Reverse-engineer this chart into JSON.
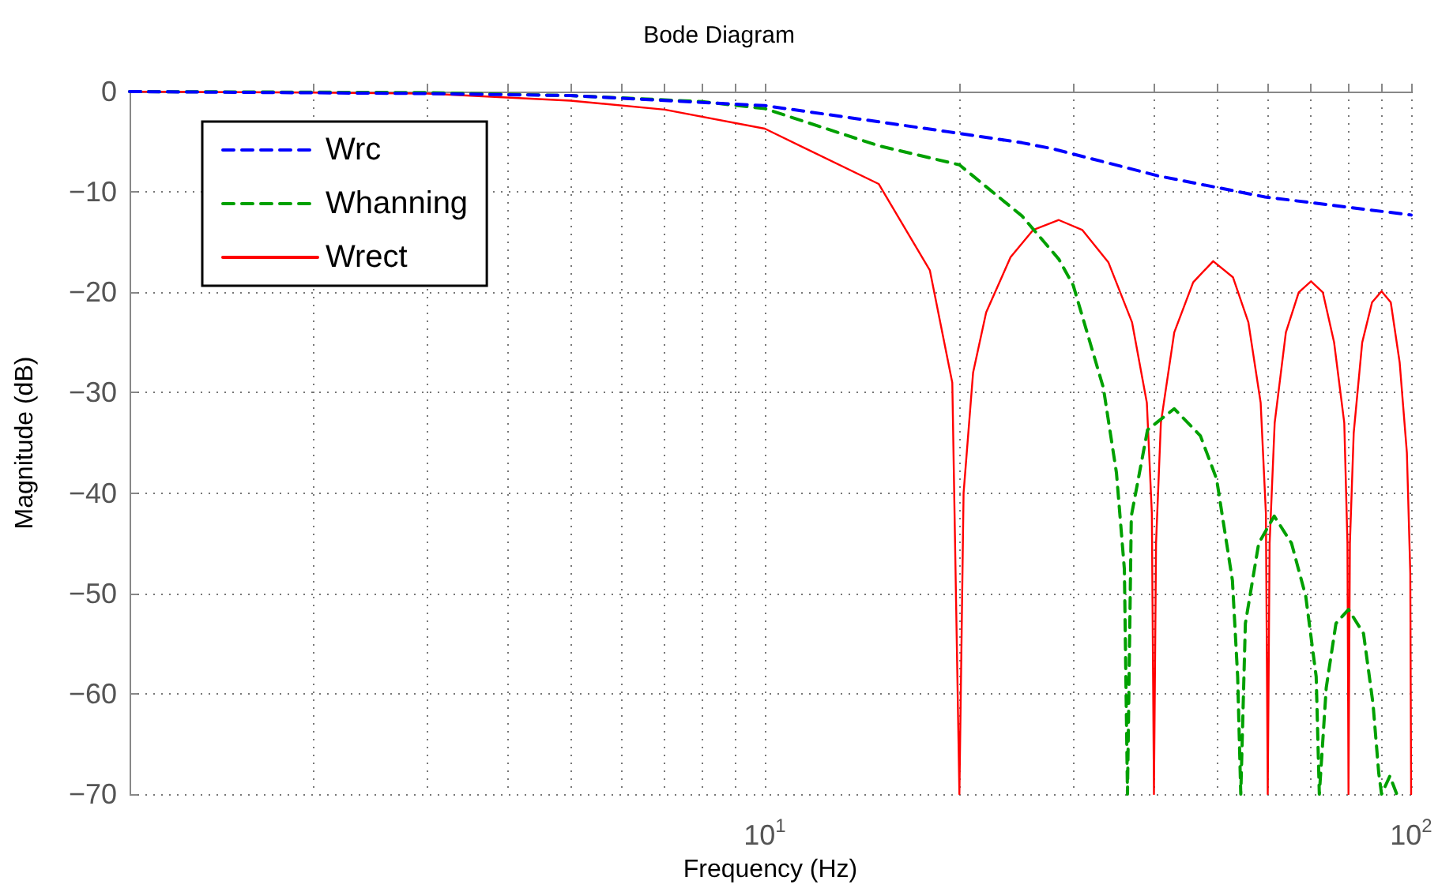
{
  "chart_data": {
    "type": "line",
    "title": "Bode Diagram",
    "xlabel": "Frequency (Hz)",
    "ylabel": "Magnitude (dB)",
    "log": "x",
    "xlim": [
      1.04,
      100
    ],
    "ylim": [
      -70,
      0
    ],
    "xticks": [
      {
        "value": 2,
        "label": null
      },
      {
        "value": 3,
        "label": null
      },
      {
        "value": 4,
        "label": null
      },
      {
        "value": 5,
        "label": null
      },
      {
        "value": 6,
        "label": null
      },
      {
        "value": 7,
        "label": null
      },
      {
        "value": 8,
        "label": null
      },
      {
        "value": 9,
        "label": null
      },
      {
        "value": 10,
        "label": "10$^{1}$"
      },
      {
        "value": 20,
        "label": null
      },
      {
        "value": 30,
        "label": null
      },
      {
        "value": 40,
        "label": null
      },
      {
        "value": 50,
        "label": null
      },
      {
        "value": 60,
        "label": null
      },
      {
        "value": 70,
        "label": null
      },
      {
        "value": 80,
        "label": null
      },
      {
        "value": 90,
        "label": null
      },
      {
        "value": 100,
        "label": "10$^{2}$"
      }
    ],
    "yticks": [
      -70,
      -60,
      -50,
      -40,
      -30,
      -20,
      -10,
      0
    ],
    "grid": true,
    "legend": "top left",
    "marker": "none",
    "series": [
      {
        "name": "Wrc",
        "color": "#0000ff",
        "line_style": "dashed",
        "x": [
          1.04,
          3,
          5,
          10,
          13.2,
          19.2,
          25,
          27.9,
          40.6,
          59.4,
          100
        ],
        "values": [
          0,
          -0.2,
          -0.4,
          -1.4,
          -2.5,
          -4.0,
          -5.1,
          -5.7,
          -8.4,
          -10.5,
          -12.3
        ]
      },
      {
        "name": "Whanning",
        "color": "#00a000",
        "line_style": "dashed",
        "x": [
          1.04,
          3,
          5,
          8,
          10,
          15,
          20,
          25,
          28.5,
          30,
          33.4,
          35,
          36,
          36.4,
          36.9,
          39.1,
          43.0,
          47.2,
          50,
          52.9,
          53.9,
          54.5,
          55.4,
          58.1,
          61.4,
          65.3,
          68.7,
          71.3,
          72.1,
          73.9,
          76.5,
          80,
          84.4,
          87.3,
          89.1,
          90,
          92.7,
          95
        ],
        "values": [
          0,
          -0.1,
          -0.4,
          -1.0,
          -1.7,
          -5.4,
          -7.3,
          -12.4,
          -16.7,
          -19.3,
          -29.5,
          -38,
          -47.6,
          -70,
          -42.3,
          -33.7,
          -31.6,
          -34.3,
          -38.6,
          -48.7,
          -58.3,
          -70,
          -53,
          -45,
          -42.3,
          -45,
          -50.3,
          -58.3,
          -70,
          -59.4,
          -53,
          -51.6,
          -54,
          -61,
          -67.9,
          -70,
          -68.2,
          -70
        ]
      },
      {
        "name": "Wrect",
        "color": "#ff0000",
        "line_style": "solid",
        "x": [
          1.04,
          2,
          3,
          5,
          7,
          10,
          15,
          18,
          19.5,
          20,
          20.3,
          21,
          22,
          24,
          26,
          28.5,
          31,
          34,
          37,
          39,
          39.7,
          40,
          40.3,
          41,
          43,
          46,
          49.4,
          53,
          56,
          58.5,
          59.6,
          60,
          60.4,
          61.5,
          64,
          67,
          70,
          73,
          76,
          78.8,
          79.7,
          80,
          80.4,
          81.5,
          84,
          87,
          90,
          93,
          96,
          98.5,
          99.7,
          100
        ],
        "values": [
          0,
          -0.1,
          -0.2,
          -0.9,
          -1.8,
          -3.7,
          -9.2,
          -17.8,
          -29,
          -70,
          -40,
          -28,
          -22,
          -16.5,
          -13.8,
          -12.8,
          -13.8,
          -17,
          -23,
          -31,
          -42,
          -70,
          -45,
          -33,
          -24,
          -19,
          -16.9,
          -18.5,
          -23,
          -31,
          -42,
          -70,
          -45,
          -33,
          -24,
          -20,
          -18.9,
          -20,
          -25,
          -33,
          -45,
          -70,
          -45,
          -34,
          -25,
          -21,
          -19.9,
          -21,
          -27,
          -36,
          -48,
          -70
        ]
      }
    ]
  }
}
